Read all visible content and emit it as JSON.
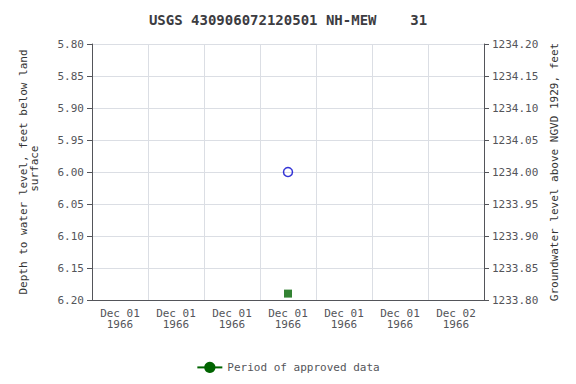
{
  "chart_data": {
    "type": "scatter",
    "title": "USGS 430906072120501 NH-MEW    31",
    "ylabel": "Depth to water level, feet below land\n surface",
    "y2label": "Groundwater level above NGVD 1929, feet",
    "categories": [
      "Dec 01\n1966",
      "Dec 01\n1966",
      "Dec 01\n1966",
      "Dec 01\n1966",
      "Dec 01\n1966",
      "Dec 01\n1966",
      "Dec 02\n1966"
    ],
    "ylim": [
      6.2,
      5.8
    ],
    "yticks": [
      {
        "value": 5.8,
        "label": "5.80"
      },
      {
        "value": 5.85,
        "label": "5.85"
      },
      {
        "value": 5.9,
        "label": "5.90"
      },
      {
        "value": 5.95,
        "label": "5.95"
      },
      {
        "value": 6.0,
        "label": "6.00"
      },
      {
        "value": 6.05,
        "label": "6.05"
      },
      {
        "value": 6.1,
        "label": "6.10"
      },
      {
        "value": 6.15,
        "label": "6.15"
      },
      {
        "value": 6.2,
        "label": "6.20"
      }
    ],
    "y2lim": [
      1233.8,
      1234.2
    ],
    "y2ticks": [
      {
        "value": 1234.2,
        "label": "1234.20"
      },
      {
        "value": 1234.15,
        "label": "1234.15"
      },
      {
        "value": 1234.1,
        "label": "1234.10"
      },
      {
        "value": 1234.05,
        "label": "1234.05"
      },
      {
        "value": 1234.0,
        "label": "1234.00"
      },
      {
        "value": 1233.95,
        "label": "1233.95"
      },
      {
        "value": 1233.9,
        "label": "1233.90"
      },
      {
        "value": 1233.85,
        "label": "1233.85"
      },
      {
        "value": 1233.8,
        "label": "1233.80"
      }
    ],
    "series": [
      {
        "type": "scatter",
        "marker": "open_circle",
        "color": "#0000cc",
        "values": [
          null,
          null,
          null,
          6.0,
          null,
          null,
          null
        ]
      },
      {
        "type": "scatter",
        "marker": "square",
        "color": "#006400",
        "values": [
          null,
          null,
          null,
          6.19,
          null,
          null,
          null
        ]
      },
      {
        "type": "line",
        "name": "Period of approved data",
        "color": "#006400",
        "values": [
          null,
          null,
          null,
          null,
          null,
          null,
          null
        ]
      }
    ],
    "grid": true,
    "legend": "bottom"
  }
}
